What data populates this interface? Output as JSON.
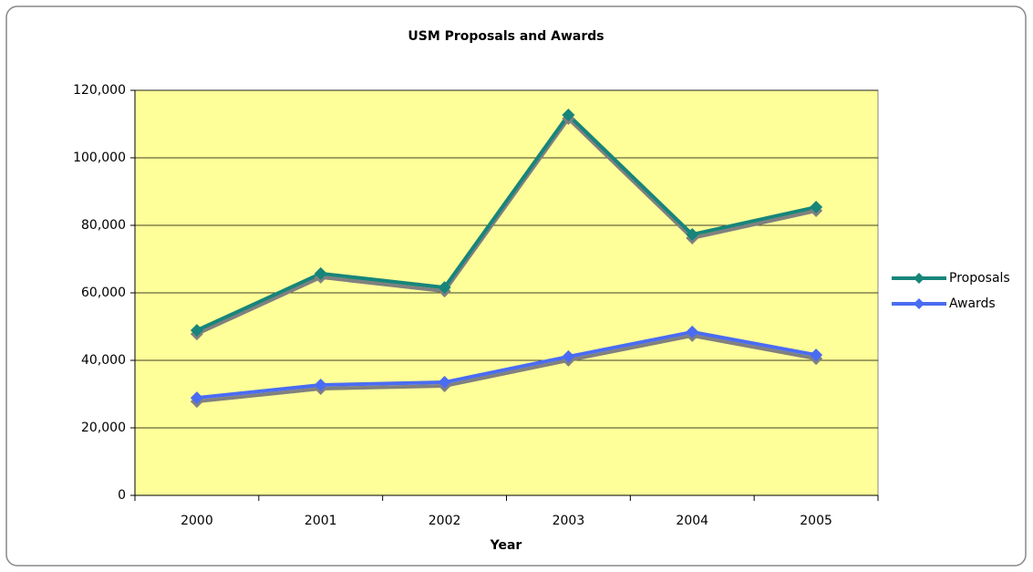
{
  "chart_data": {
    "type": "line",
    "title": "USM Proposals and Awards",
    "xlabel": "Year",
    "categories": [
      "2000",
      "2001",
      "2002",
      "2003",
      "2004",
      "2005"
    ],
    "series": [
      {
        "name": "Proposals",
        "color": "#17857a",
        "values": [
          48900,
          65700,
          61600,
          112700,
          77300,
          85400
        ]
      },
      {
        "name": "Awards",
        "color": "#4a6cf2",
        "values": [
          28900,
          32700,
          33500,
          41100,
          48400,
          41600
        ]
      }
    ],
    "ylim": [
      0,
      120000
    ],
    "yticks": [
      0,
      {
        "value": 20000,
        "label": "20,000"
      },
      {
        "value": 40000,
        "label": "40,000"
      },
      {
        "value": 60000,
        "label": "60,000"
      },
      {
        "value": 80000,
        "label": "80,000"
      },
      {
        "value": 100000,
        "label": "100,000"
      },
      {
        "value": 120000,
        "label": "120,000"
      }
    ],
    "grid": true,
    "plot_background": "#ffff99",
    "legend": "right"
  }
}
